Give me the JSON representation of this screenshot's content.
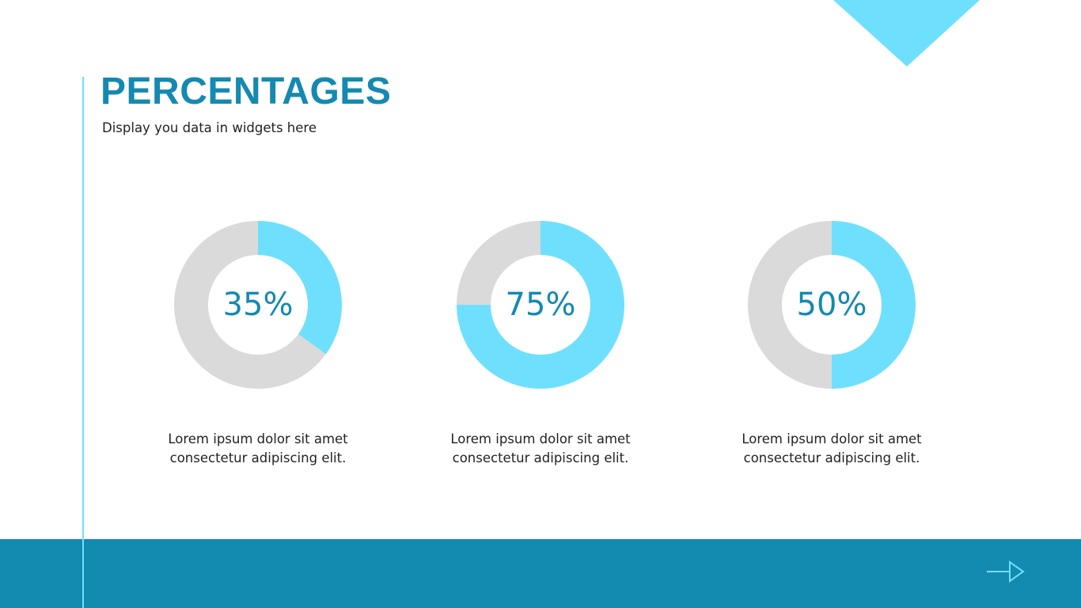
{
  "header": {
    "title": "PERCENTAGES",
    "subtitle": "Display you data in widgets here"
  },
  "colors": {
    "accent": "#6fdffe",
    "primary": "#1589b0",
    "track": "#dadada",
    "footer": "#138ab0"
  },
  "footer": {
    "next_icon": "arrow-right-icon"
  },
  "chart_data": [
    {
      "type": "pie",
      "variant": "donut",
      "value": 35,
      "label": "35%",
      "caption": [
        "Lorem ipsum dolor sit amet",
        "consectetur adipiscing elit."
      ]
    },
    {
      "type": "pie",
      "variant": "donut",
      "value": 75,
      "label": "75%",
      "caption": [
        "Lorem ipsum dolor sit amet",
        "consectetur adipiscing elit."
      ]
    },
    {
      "type": "pie",
      "variant": "donut",
      "value": 50,
      "label": "50%",
      "caption": [
        "Lorem ipsum dolor sit amet",
        "consectetur adipiscing elit."
      ]
    }
  ]
}
